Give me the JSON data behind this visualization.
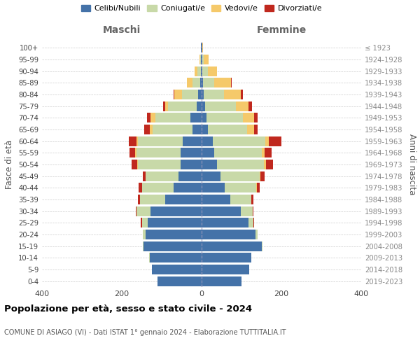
{
  "age_groups": [
    "0-4",
    "5-9",
    "10-14",
    "15-19",
    "20-24",
    "25-29",
    "30-34",
    "35-39",
    "40-44",
    "45-49",
    "50-54",
    "55-59",
    "60-64",
    "65-69",
    "70-74",
    "75-79",
    "80-84",
    "85-89",
    "90-94",
    "95-99",
    "100+"
  ],
  "birth_years": [
    "2019-2023",
    "2014-2018",
    "2009-2013",
    "2004-2008",
    "1999-2003",
    "1994-1998",
    "1989-1993",
    "1984-1988",
    "1979-1983",
    "1974-1978",
    "1969-1973",
    "1964-1968",
    "1959-1963",
    "1954-1958",
    "1949-1953",
    "1944-1948",
    "1939-1943",
    "1934-1938",
    "1929-1933",
    "1924-1928",
    "≤ 1923"
  ],
  "colors": {
    "celibe": "#4472a8",
    "coniugato": "#c8d9a8",
    "vedovo": "#f5c96a",
    "divorziato": "#c0281e"
  },
  "male": {
    "celibe": [
      110,
      125,
      130,
      145,
      140,
      135,
      128,
      92,
      70,
      58,
      52,
      52,
      48,
      22,
      28,
      12,
      8,
      4,
      2,
      2,
      1
    ],
    "coniugato": [
      0,
      0,
      2,
      3,
      8,
      15,
      35,
      62,
      80,
      82,
      108,
      112,
      112,
      100,
      88,
      72,
      42,
      18,
      8,
      2,
      0
    ],
    "vedovo": [
      0,
      0,
      0,
      0,
      0,
      0,
      0,
      0,
      0,
      0,
      2,
      2,
      4,
      8,
      12,
      8,
      18,
      14,
      8,
      2,
      0
    ],
    "divorziato": [
      0,
      0,
      0,
      0,
      0,
      2,
      2,
      5,
      8,
      8,
      14,
      14,
      18,
      14,
      8,
      5,
      2,
      1,
      0,
      0,
      0
    ]
  },
  "female": {
    "nubile": [
      100,
      120,
      125,
      150,
      135,
      118,
      98,
      72,
      58,
      48,
      38,
      32,
      28,
      16,
      12,
      8,
      5,
      3,
      2,
      2,
      1
    ],
    "coniugata": [
      0,
      0,
      0,
      2,
      5,
      12,
      30,
      52,
      78,
      98,
      118,
      118,
      132,
      98,
      92,
      78,
      52,
      28,
      14,
      4,
      0
    ],
    "vedova": [
      0,
      0,
      0,
      0,
      0,
      0,
      0,
      0,
      2,
      2,
      5,
      8,
      8,
      18,
      28,
      32,
      42,
      42,
      22,
      12,
      2
    ],
    "divorziata": [
      0,
      0,
      0,
      0,
      0,
      2,
      2,
      5,
      8,
      10,
      18,
      18,
      32,
      8,
      8,
      8,
      5,
      2,
      1,
      0,
      0
    ]
  },
  "title": "Popolazione per età, sesso e stato civile - 2024",
  "subtitle": "COMUNE DI ASIAGO (VI) - Dati ISTAT 1° gennaio 2024 - Elaborazione TUTTITALIA.IT",
  "xlabel_left": "Maschi",
  "xlabel_right": "Femmine",
  "ylabel_left": "Fasce di età",
  "ylabel_right": "Anni di nascita",
  "xlim": 400,
  "legend_labels": [
    "Celibi/Nubili",
    "Coniugati/e",
    "Vedovi/e",
    "Divorziati/e"
  ]
}
